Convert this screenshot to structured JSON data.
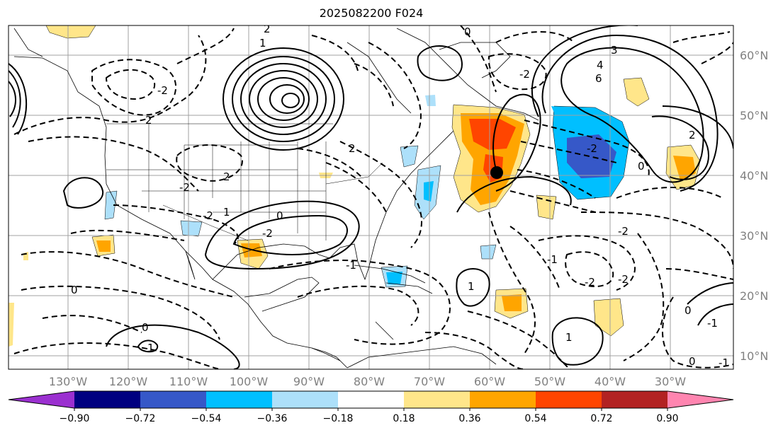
{
  "title": "2025082200 F024",
  "lon_labels": [
    "130°W",
    "120°W",
    "110°W",
    "100°W",
    "90°W",
    "80°W",
    "70°W",
    "60°W",
    "50°W",
    "40°W",
    "30°W"
  ],
  "lat_labels": [
    "60°N",
    "50°N",
    "40°N",
    "30°N",
    "20°N",
    "10°N"
  ],
  "colorbar": {
    "colors": [
      "#9b30d0",
      "#000080",
      "#3658c8",
      "#00bfff",
      "#ade0fa",
      "#ffffff",
      "#ffe68a",
      "#ffa500",
      "#ff4500",
      "#b22222",
      "#ff85b0"
    ],
    "tick_labels": [
      "−0.90",
      "−0.72",
      "−0.54",
      "−0.36",
      "−0.18",
      "0.18",
      "0.36",
      "0.54",
      "0.72",
      "0.90"
    ]
  },
  "contour_labels": [
    "2",
    "1",
    "0",
    "-2",
    "-2",
    "2",
    "-2",
    "2",
    "-2",
    "1",
    "0",
    "-2",
    "2",
    "3",
    "4",
    "6",
    "-2",
    "0",
    "-1",
    "1",
    "0",
    "0",
    "1",
    "-2",
    "-1",
    "-1",
    "0",
    "-1",
    "0",
    "1",
    "-2",
    "-2",
    "2"
  ],
  "marker": "filled-circle"
}
